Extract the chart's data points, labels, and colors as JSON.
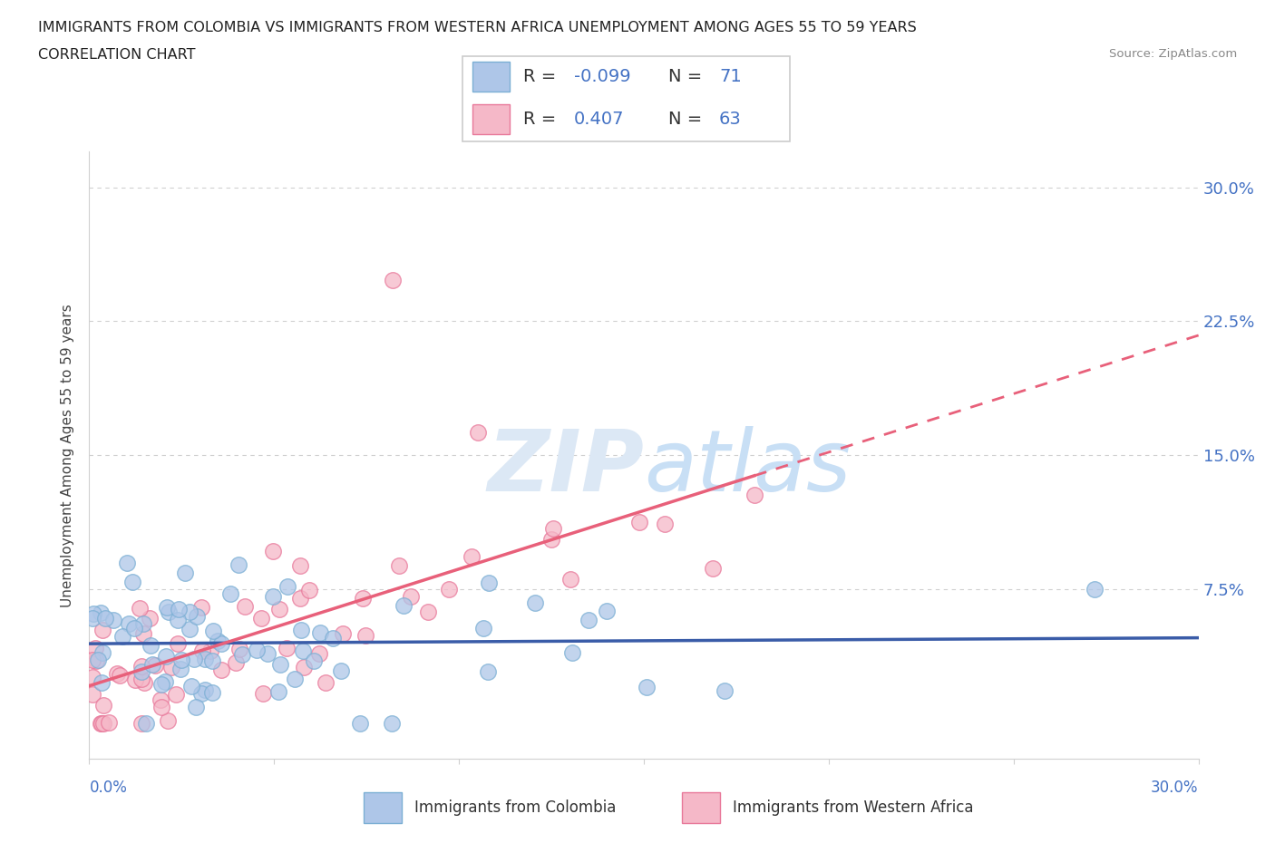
{
  "title_line1": "IMMIGRANTS FROM COLOMBIA VS IMMIGRANTS FROM WESTERN AFRICA UNEMPLOYMENT AMONG AGES 55 TO 59 YEARS",
  "title_line2": "CORRELATION CHART",
  "source": "Source: ZipAtlas.com",
  "ylabel": "Unemployment Among Ages 55 to 59 years",
  "xmin": 0.0,
  "xmax": 0.3,
  "ymin": -0.02,
  "ymax": 0.32,
  "colombia_color": "#aec6e8",
  "colombia_edge": "#7bafd4",
  "western_africa_color": "#f5b8c8",
  "western_africa_edge": "#e8789a",
  "legend_R1": "-0.099",
  "legend_N1": "71",
  "legend_R2": "0.407",
  "legend_N2": "63",
  "trendline1_color": "#3a5ca8",
  "trendline2_color": "#e8607a",
  "right_tick_color": "#4472C4",
  "watermark_color": "#dce8f5",
  "grid_color": "#d0d0d0",
  "yticks": [
    0.0,
    0.075,
    0.15,
    0.225,
    0.3
  ],
  "ytick_labels_right": [
    "",
    "7.5%",
    "15.0%",
    "22.5%",
    "30.0%"
  ]
}
